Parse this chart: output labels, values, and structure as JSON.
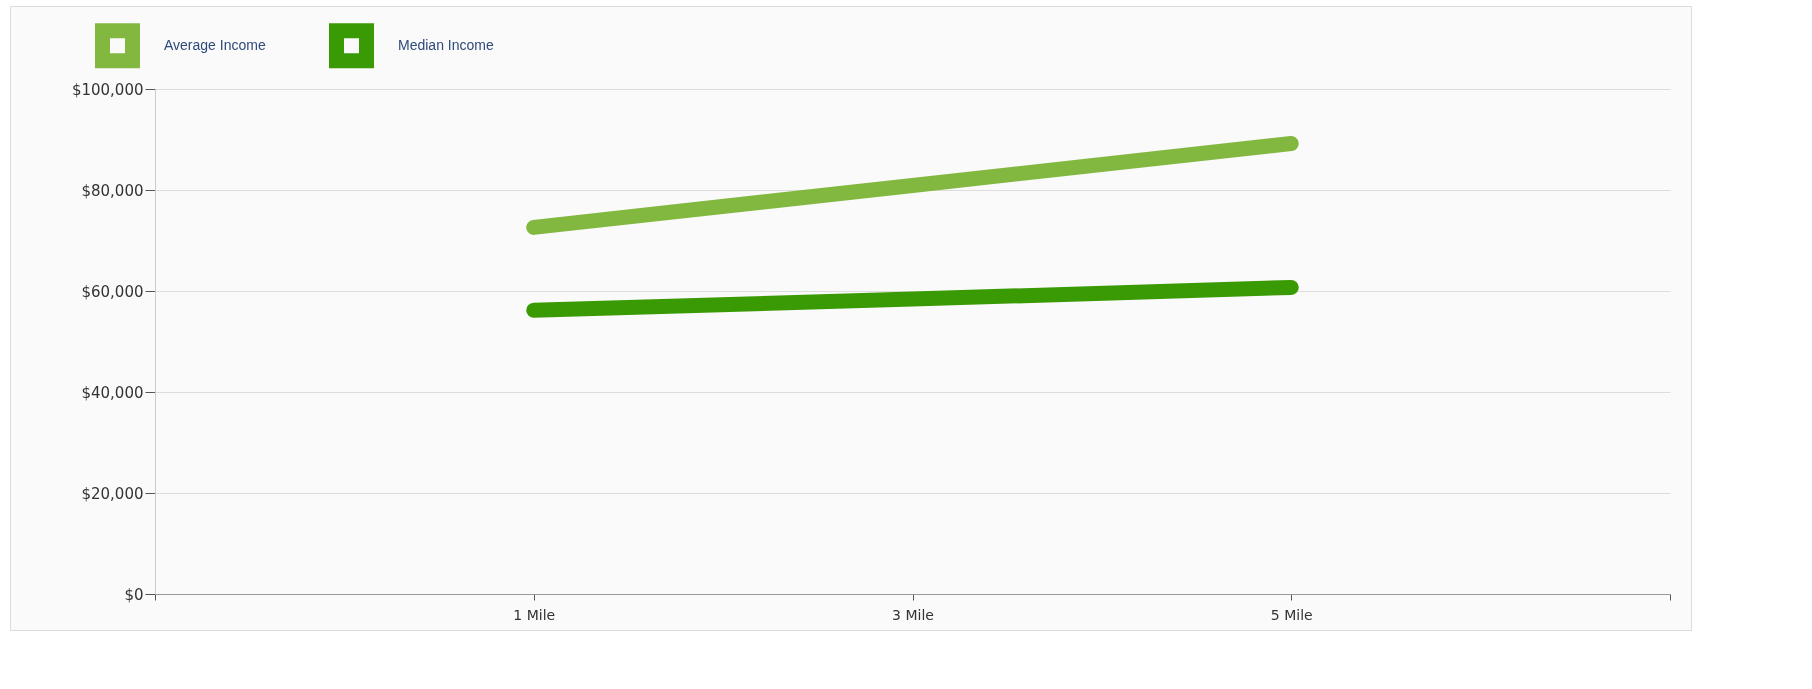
{
  "chart_data": {
    "type": "line",
    "categories": [
      null,
      "1 Mile",
      "3 Mile",
      "5 Mile",
      null
    ],
    "series": [
      {
        "name": "Average Income",
        "color": "#82b840",
        "values": [
          null,
          72600,
          80900,
          89200,
          null
        ]
      },
      {
        "name": "Median Income",
        "color": "#3a9a04",
        "values": [
          null,
          56200,
          58400,
          60700,
          null
        ]
      }
    ],
    "ylim": [
      0,
      100000
    ],
    "yticks": [
      {
        "value": 0,
        "label": "$0"
      },
      {
        "value": 20000,
        "label": "$20,000"
      },
      {
        "value": 40000,
        "label": "$40,000"
      },
      {
        "value": 60000,
        "label": "$60,000"
      },
      {
        "value": 80000,
        "label": "$80,000"
      },
      {
        "value": 100000,
        "label": "$100,000"
      }
    ],
    "grid": "y",
    "legend": "top left",
    "marker": "none",
    "line_style": "solid"
  }
}
